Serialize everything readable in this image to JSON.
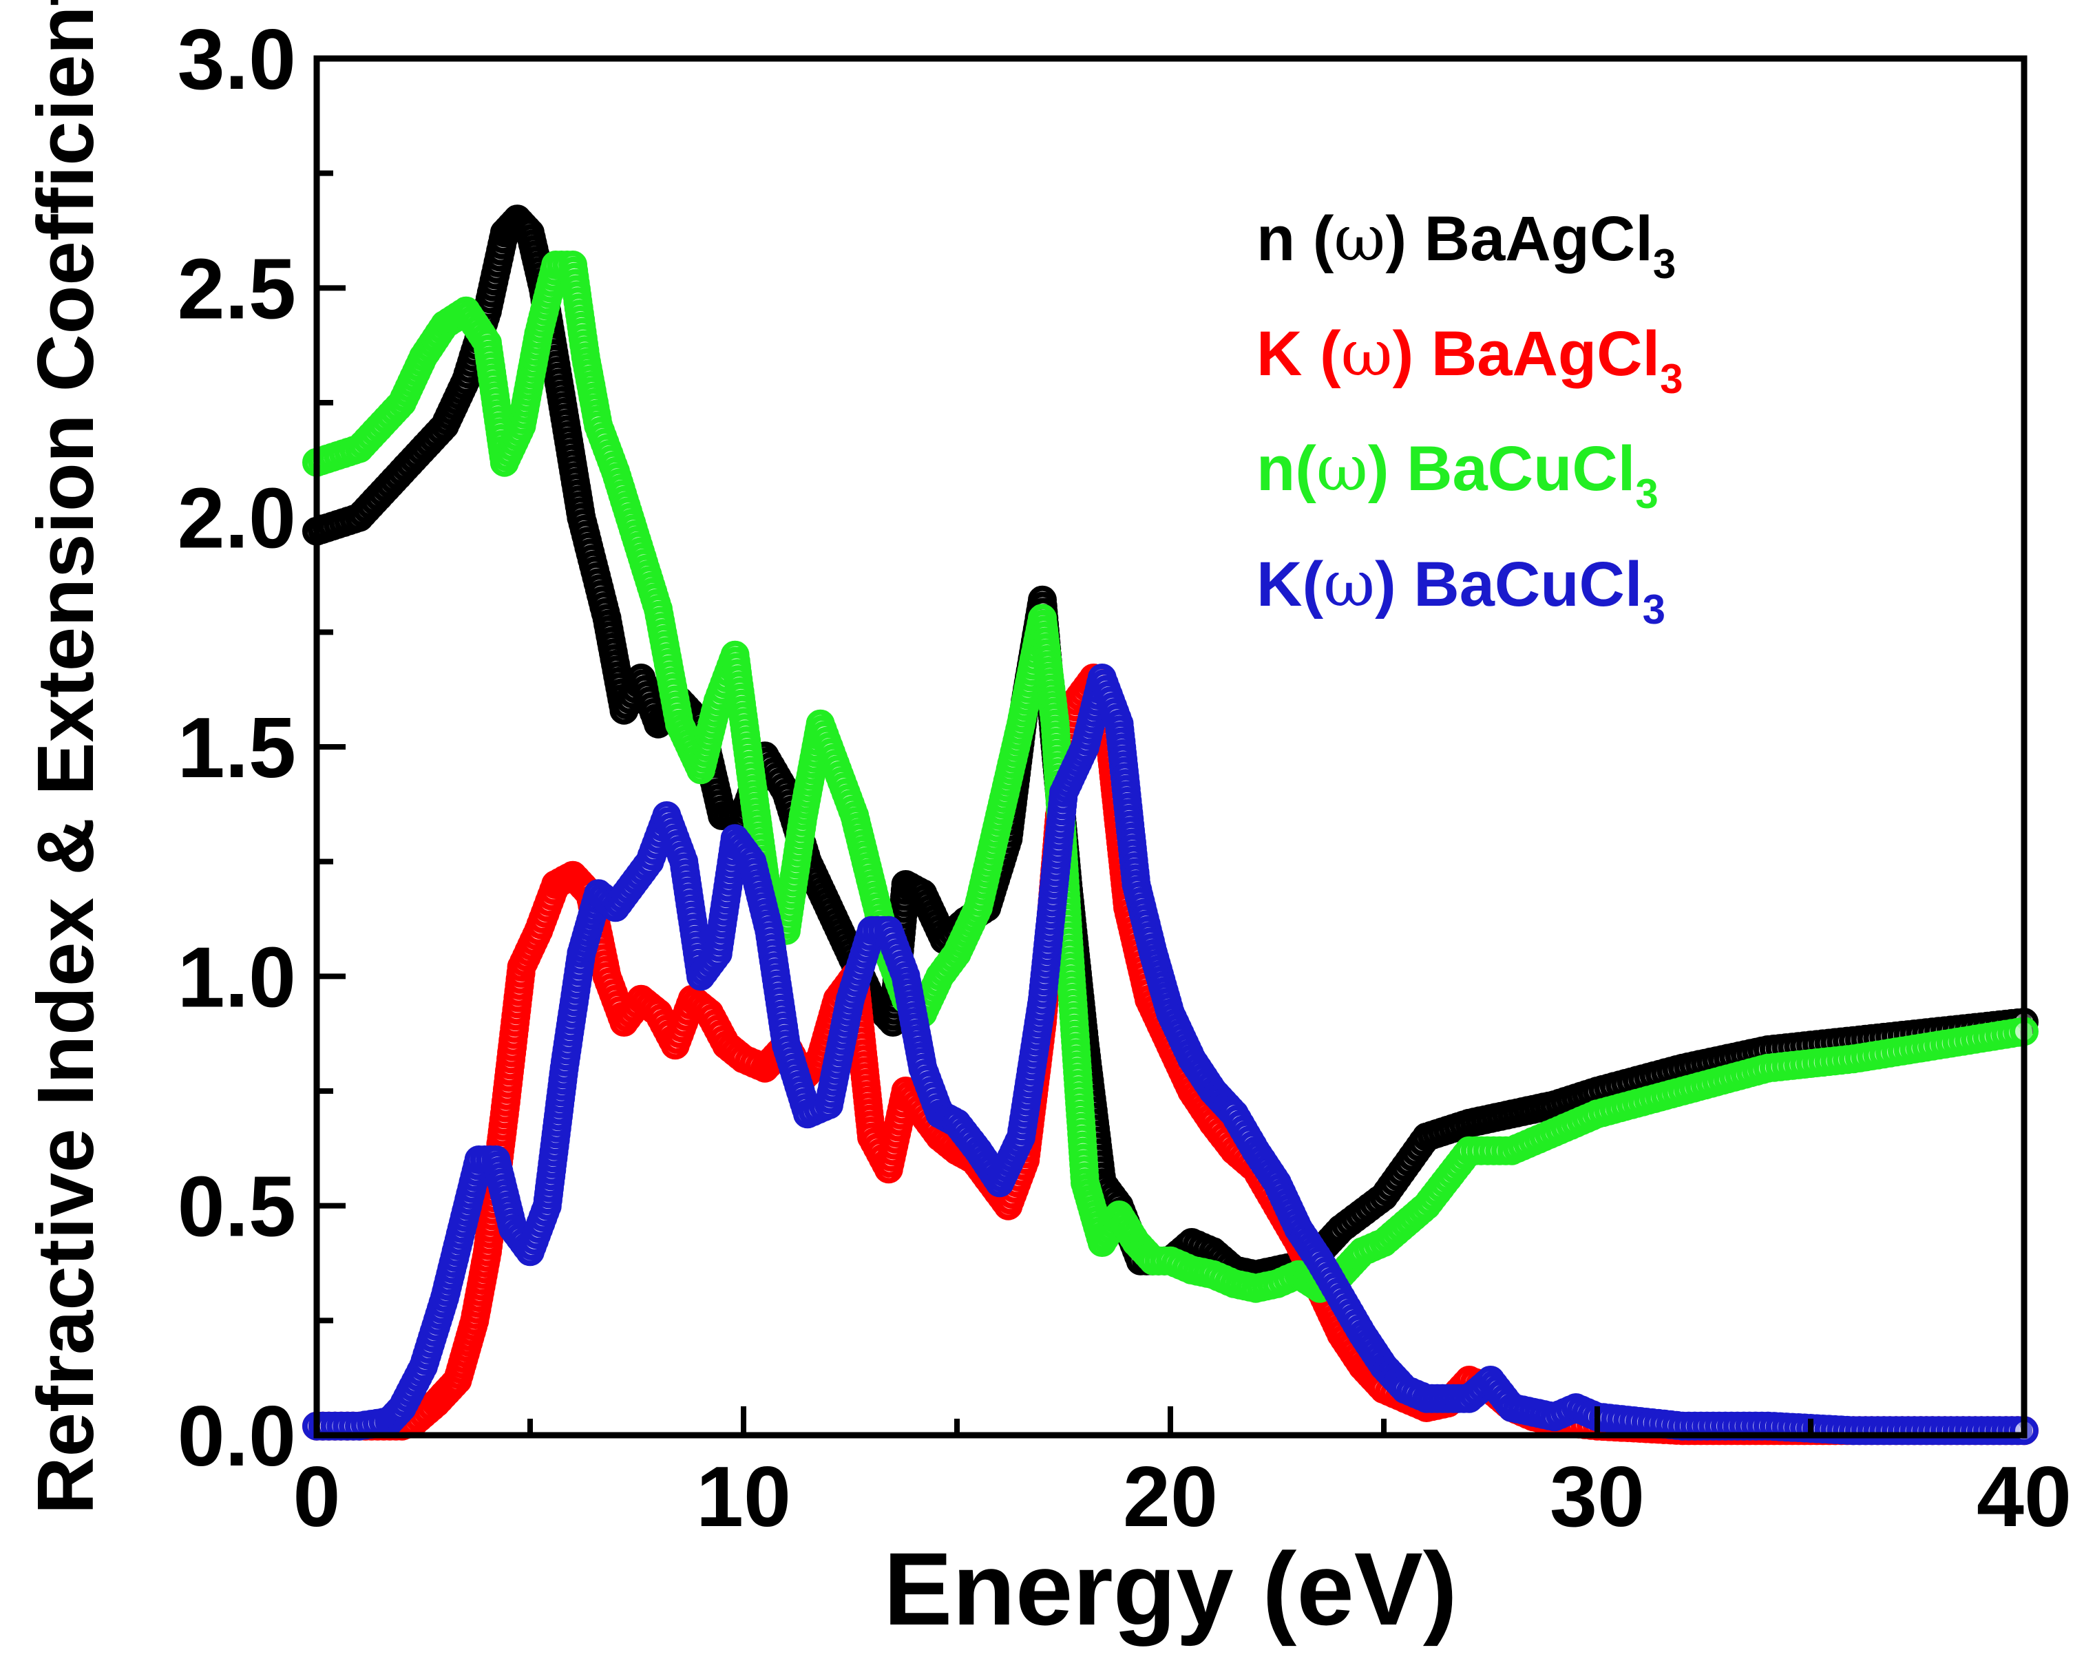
{
  "chart_data": {
    "type": "scatter",
    "title": "",
    "xlabel": "Energy (eV)",
    "ylabel": "Refractive Index & Extension Coefficient",
    "xlim": [
      0,
      40
    ],
    "ylim": [
      0,
      3.0
    ],
    "xticks": [
      "0",
      "10",
      "20",
      "30",
      "40"
    ],
    "yticks": [
      "0.0",
      "0.5",
      "1.0",
      "1.5",
      "2.0",
      "2.5",
      "3.0"
    ],
    "legend_position": "top-right",
    "series": [
      {
        "name": "n (ω) BaAgCl3",
        "label_main": "n (",
        "label_omega": "ω",
        "label_rest": ") BaAgCl",
        "label_sub": "3",
        "color": "#000000",
        "x": [
          0,
          1,
          2,
          3,
          3.5,
          4,
          4.4,
          4.7,
          5.0,
          5.3,
          5.7,
          6.2,
          6.8,
          7.2,
          7.6,
          8.0,
          8.5,
          9.0,
          9.5,
          10.0,
          10.5,
          11.0,
          11.5,
          12.0,
          12.5,
          13.0,
          13.5,
          13.8,
          14.2,
          14.7,
          15.2,
          15.7,
          16.2,
          16.6,
          17.0,
          17.3,
          17.6,
          18.0,
          18.4,
          18.8,
          19.3,
          20.0,
          20.5,
          21.0,
          21.5,
          22.0,
          22.5,
          23.0,
          23.5,
          24.0,
          25.0,
          26.0,
          27.0,
          28.0,
          29.0,
          30.0,
          32.0,
          34.0,
          36.0,
          38.0,
          40.0
        ],
        "y": [
          1.97,
          2.0,
          2.1,
          2.2,
          2.3,
          2.45,
          2.62,
          2.65,
          2.62,
          2.5,
          2.28,
          2.0,
          1.78,
          1.58,
          1.65,
          1.55,
          1.6,
          1.55,
          1.35,
          1.35,
          1.48,
          1.4,
          1.25,
          1.15,
          1.05,
          0.95,
          0.9,
          1.2,
          1.18,
          1.08,
          1.12,
          1.15,
          1.3,
          1.6,
          1.82,
          1.5,
          1.2,
          0.85,
          0.55,
          0.5,
          0.38,
          0.38,
          0.42,
          0.4,
          0.36,
          0.35,
          0.36,
          0.37,
          0.4,
          0.45,
          0.52,
          0.65,
          0.68,
          0.7,
          0.72,
          0.75,
          0.8,
          0.84,
          0.86,
          0.88,
          0.9
        ]
      },
      {
        "name": "K (ω) BaAgCl3",
        "label_main": "K (",
        "label_omega": "ω",
        "label_rest": ") BaAgCl",
        "label_sub": "3",
        "color": "#ff0000",
        "x": [
          0,
          1,
          2,
          2.3,
          2.8,
          3.3,
          3.7,
          4.0,
          4.4,
          4.8,
          5.2,
          5.6,
          6.0,
          6.4,
          6.8,
          7.2,
          7.6,
          8.0,
          8.4,
          8.8,
          9.2,
          9.6,
          10.0,
          10.5,
          11.0,
          11.4,
          11.8,
          12.2,
          12.6,
          13.0,
          13.4,
          13.8,
          14.2,
          14.6,
          15.0,
          15.4,
          15.8,
          16.2,
          16.6,
          17.0,
          17.4,
          17.8,
          18.2,
          18.6,
          19.0,
          19.5,
          20.0,
          20.5,
          21.0,
          21.5,
          22.0,
          22.5,
          23.0,
          23.5,
          24.0,
          24.5,
          25.0,
          25.5,
          26.0,
          26.5,
          27.0,
          27.5,
          28.0,
          28.5,
          29.0,
          30.0,
          32.0,
          34.0,
          36.0,
          38.0,
          40.0
        ],
        "y": [
          0.02,
          0.02,
          0.02,
          0.03,
          0.07,
          0.12,
          0.25,
          0.4,
          0.7,
          1.02,
          1.1,
          1.2,
          1.22,
          1.18,
          1.0,
          0.9,
          0.95,
          0.92,
          0.85,
          0.95,
          0.92,
          0.85,
          0.82,
          0.8,
          0.85,
          0.78,
          0.82,
          0.95,
          1.0,
          0.65,
          0.58,
          0.75,
          0.7,
          0.65,
          0.62,
          0.6,
          0.55,
          0.5,
          0.6,
          0.9,
          1.35,
          1.6,
          1.65,
          1.5,
          1.15,
          0.95,
          0.85,
          0.75,
          0.68,
          0.62,
          0.58,
          0.5,
          0.42,
          0.32,
          0.22,
          0.15,
          0.1,
          0.08,
          0.06,
          0.07,
          0.12,
          0.1,
          0.06,
          0.04,
          0.03,
          0.02,
          0.01,
          0.01,
          0.01,
          0.01,
          0.01
        ]
      },
      {
        "name": "n(ω) BaCuCl3",
        "label_main": "n(",
        "label_omega": "ω",
        "label_rest": ") BaCuCl",
        "label_sub": "3",
        "color": "#22ee22",
        "x": [
          0,
          1,
          2,
          2.5,
          3.0,
          3.5,
          4.0,
          4.4,
          4.8,
          5.2,
          5.6,
          6.0,
          6.3,
          6.6,
          7.0,
          7.5,
          8.0,
          8.5,
          9.0,
          9.4,
          9.8,
          10.2,
          10.6,
          11.0,
          11.4,
          11.8,
          12.2,
          12.6,
          13.0,
          13.4,
          13.8,
          14.2,
          14.6,
          15.0,
          15.5,
          16.0,
          16.5,
          17.0,
          17.3,
          17.6,
          18.0,
          18.4,
          18.8,
          19.2,
          19.6,
          20.0,
          20.5,
          21.0,
          21.5,
          22.0,
          22.5,
          23.0,
          23.5,
          24.0,
          24.5,
          25.0,
          26.0,
          27.0,
          28.0,
          29.0,
          30.0,
          32.0,
          34.0,
          36.0,
          38.0,
          40.0
        ],
        "y": [
          2.12,
          2.15,
          2.25,
          2.35,
          2.42,
          2.45,
          2.38,
          2.12,
          2.2,
          2.4,
          2.55,
          2.55,
          2.35,
          2.2,
          2.1,
          1.95,
          1.8,
          1.55,
          1.45,
          1.6,
          1.7,
          1.42,
          1.15,
          1.1,
          1.35,
          1.55,
          1.45,
          1.35,
          1.2,
          1.05,
          0.95,
          0.92,
          1.0,
          1.05,
          1.15,
          1.35,
          1.55,
          1.78,
          1.55,
          1.1,
          0.55,
          0.42,
          0.48,
          0.42,
          0.38,
          0.38,
          0.36,
          0.35,
          0.33,
          0.32,
          0.33,
          0.35,
          0.32,
          0.35,
          0.4,
          0.42,
          0.5,
          0.62,
          0.62,
          0.66,
          0.7,
          0.75,
          0.8,
          0.82,
          0.85,
          0.88
        ]
      },
      {
        "name": "K(ω) BaCuCl3",
        "label_main": "K(",
        "label_omega": "ω",
        "label_rest": ") BaCuCl",
        "label_sub": "3",
        "color": "#1a1acc",
        "x": [
          0,
          1,
          1.7,
          2.0,
          2.5,
          3.0,
          3.4,
          3.8,
          4.2,
          4.6,
          5.0,
          5.4,
          5.8,
          6.2,
          6.6,
          7.0,
          7.4,
          7.8,
          8.2,
          8.6,
          9.0,
          9.4,
          9.8,
          10.2,
          10.6,
          11.0,
          11.5,
          12.0,
          12.5,
          13.0,
          13.4,
          13.8,
          14.2,
          14.6,
          15.0,
          15.5,
          16.0,
          16.5,
          17.0,
          17.5,
          18.0,
          18.4,
          18.8,
          19.2,
          19.6,
          20.0,
          20.5,
          21.0,
          21.5,
          22.0,
          22.5,
          23.0,
          23.5,
          24.0,
          24.5,
          25.0,
          25.5,
          26.0,
          26.5,
          27.0,
          27.5,
          28.0,
          29.0,
          29.5,
          30.0,
          32.0,
          34.0,
          36.0,
          38.0,
          40.0
        ],
        "y": [
          0.02,
          0.02,
          0.03,
          0.06,
          0.15,
          0.3,
          0.45,
          0.6,
          0.6,
          0.45,
          0.4,
          0.5,
          0.8,
          1.05,
          1.18,
          1.15,
          1.2,
          1.25,
          1.35,
          1.25,
          1.0,
          1.05,
          1.3,
          1.25,
          1.1,
          0.85,
          0.7,
          0.72,
          0.95,
          1.1,
          1.1,
          1.0,
          0.8,
          0.7,
          0.68,
          0.62,
          0.55,
          0.65,
          0.95,
          1.4,
          1.5,
          1.65,
          1.55,
          1.2,
          1.05,
          0.92,
          0.82,
          0.75,
          0.7,
          0.62,
          0.55,
          0.45,
          0.38,
          0.3,
          0.22,
          0.15,
          0.1,
          0.08,
          0.08,
          0.08,
          0.12,
          0.06,
          0.04,
          0.06,
          0.04,
          0.02,
          0.02,
          0.01,
          0.01,
          0.01
        ]
      }
    ]
  }
}
